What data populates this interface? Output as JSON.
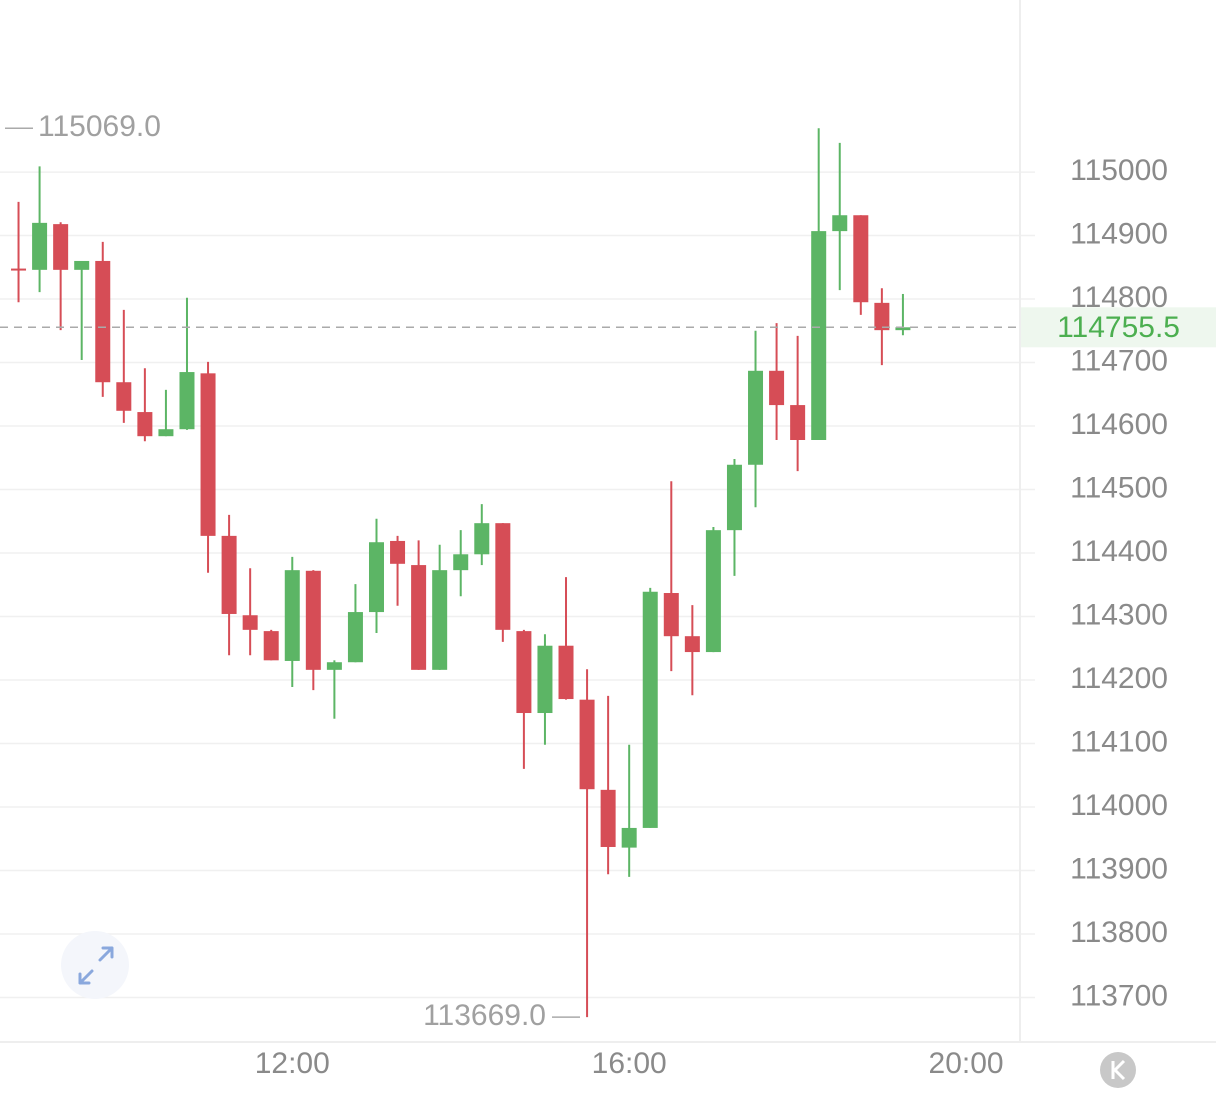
{
  "chart_data": {
    "type": "candlestick",
    "x": [
      8.75,
      9,
      9.25,
      9.5,
      9.75,
      10,
      10.25,
      10.5,
      10.75,
      11,
      11.25,
      11.5,
      11.75,
      12,
      12.25,
      12.5,
      12.75,
      13,
      13.25,
      13.5,
      13.75,
      14,
      14.25,
      14.5,
      14.75,
      15,
      15.25,
      15.5,
      15.75,
      16,
      16.25,
      16.5,
      16.75,
      17,
      17.25,
      17.5,
      17.75,
      18,
      18.25,
      18.5,
      18.75,
      19,
      19.25
    ],
    "open": [
      114848,
      114846,
      114918,
      114846,
      114860,
      114669,
      114622,
      114584,
      114595,
      114683,
      114427,
      114302,
      114277,
      114230,
      114372,
      114216,
      114228,
      114307,
      114419,
      114381,
      114216,
      114373,
      114398,
      114447,
      114277,
      114148,
      114254,
      114169,
      114027,
      113936,
      113967,
      114337,
      114269,
      114244,
      114436,
      114539,
      114687,
      114633,
      114578,
      114907,
      114932,
      114794,
      114751
    ],
    "high": [
      114953,
      115009,
      114921,
      114860,
      114890,
      114783,
      114691,
      114657,
      114802,
      114701,
      114460,
      114376,
      114279,
      114394,
      114373,
      114231,
      114351,
      114454,
      114427,
      114420,
      114413,
      114436,
      114477,
      114447,
      114279,
      114272,
      114362,
      114217,
      114175,
      114098,
      114345,
      114513,
      114318,
      114441,
      114548,
      114750,
      114762,
      114742,
      115069,
      115046,
      114932,
      114817,
      114808
    ],
    "low": [
      114795,
      114811,
      114751,
      114704,
      114646,
      114605,
      114576,
      114584,
      114594,
      114369,
      114239,
      114239,
      114231,
      114189,
      114184,
      114139,
      114228,
      114274,
      114317,
      114216,
      114216,
      114332,
      114381,
      114260,
      114060,
      114098,
      114169,
      113669,
      113894,
      113890,
      113967,
      114214,
      114176,
      114244,
      114364,
      114472,
      114578,
      114529,
      114578,
      114814,
      114775,
      114696,
      114743
    ],
    "close": [
      114845,
      114920,
      114846,
      114860,
      114669,
      114624,
      114584,
      114595,
      114685,
      114427,
      114304,
      114279,
      114231,
      114373,
      114216,
      114228,
      114307,
      114417,
      114383,
      114216,
      114373,
      114398,
      114447,
      114279,
      114148,
      114254,
      114170,
      114028,
      113937,
      113967,
      114339,
      114269,
      114244,
      114436,
      114539,
      114687,
      114633,
      114578,
      114907,
      114932,
      114795,
      114751,
      114755.5
    ],
    "up_color": "#5cb565",
    "down_color": "#d64d56",
    "xlim": [
      8.53,
      20.64
    ],
    "xticks": [
      {
        "value": 12,
        "label": "12:00"
      },
      {
        "value": 16,
        "label": "16:00"
      },
      {
        "value": 20,
        "label": "20:00"
      }
    ],
    "ylim": [
      113633,
      115271
    ],
    "yticks": [
      113700,
      113800,
      113900,
      114000,
      114100,
      114200,
      114300,
      114400,
      114500,
      114600,
      114700,
      114800,
      114900,
      115000
    ],
    "grid": true,
    "high_annotation": {
      "value": 115069,
      "label": "115069.0"
    },
    "low_annotation": {
      "value": 113669,
      "label": "113669.0"
    },
    "last_price": {
      "value": 114755.5,
      "label": "114755.5"
    }
  }
}
